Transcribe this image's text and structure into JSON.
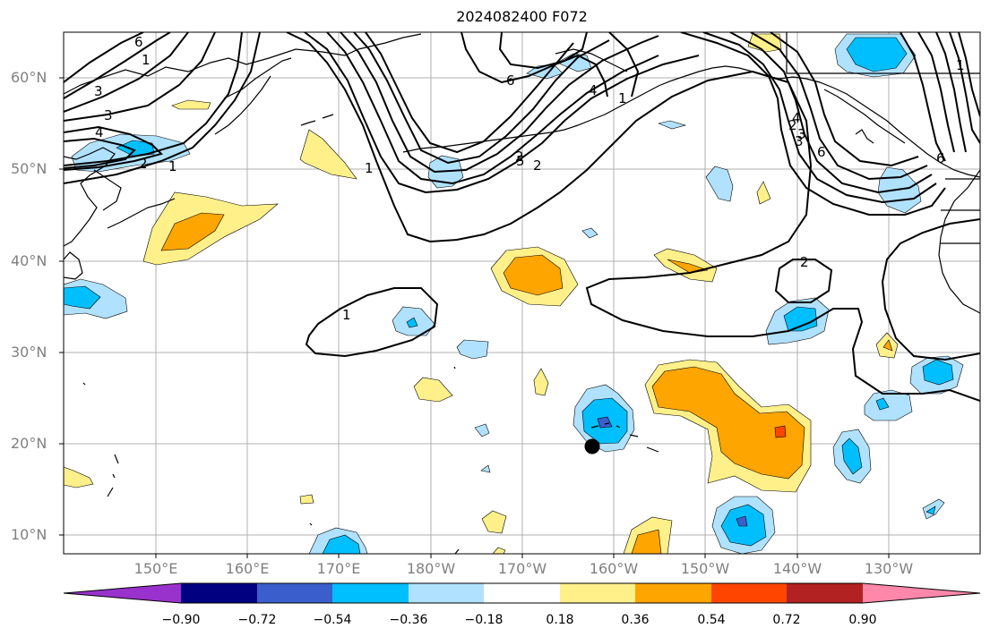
{
  "title": "2024082400 F072",
  "map": {
    "lat_labels": [
      "60°N",
      "50°N",
      "40°N",
      "30°N",
      "20°N",
      "10°N"
    ],
    "lon_labels": [
      "150°E",
      "160°E",
      "170°E",
      "180°W",
      "170°W",
      "160°W",
      "150°W",
      "140°W",
      "130°W"
    ],
    "contour_labels": [
      "6",
      "3",
      "3",
      "4",
      "2",
      "1",
      "1",
      "2",
      "1",
      "2",
      "6",
      "4",
      "3",
      "6",
      "1",
      "1",
      "2",
      "1",
      "2",
      "3",
      "4",
      "5",
      "6"
    ],
    "marker": "storm-center"
  },
  "colorbar": {
    "ticks": [
      "−0.90",
      "−0.72",
      "−0.54",
      "−0.36",
      "−0.18",
      "0.18",
      "0.36",
      "0.54",
      "0.72",
      "0.90"
    ],
    "colors": [
      "#9932cc",
      "#000080",
      "#3a5fcd",
      "#00bfff",
      "#b0e2ff",
      "#ffffff",
      "#fff08a",
      "#ffa500",
      "#ff4500",
      "#b22222",
      "#ff88aa"
    ]
  }
}
